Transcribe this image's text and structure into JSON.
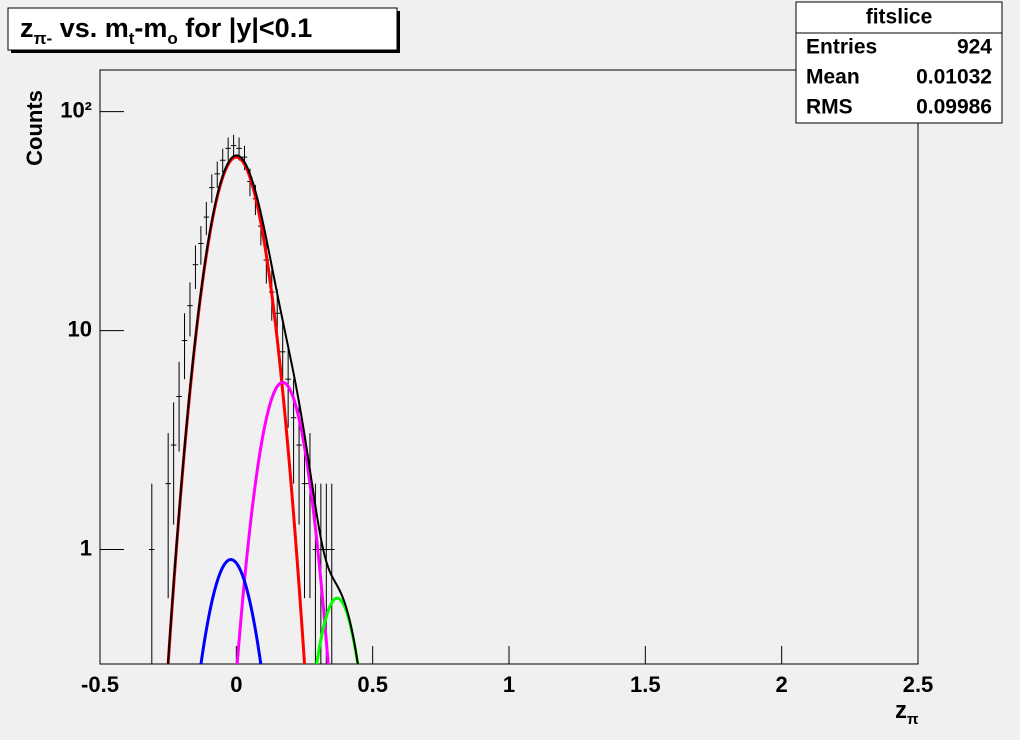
{
  "chart_data": {
    "type": "errorbar",
    "title": [
      {
        "text": "z"
      },
      {
        "text": "π-",
        "sub": true
      },
      {
        "text": " vs. m"
      },
      {
        "text": "t",
        "sub": true
      },
      {
        "text": "-m"
      },
      {
        "text": "o",
        "sub": true
      },
      {
        "text": " for |y|<0.1"
      }
    ],
    "xlabel": [
      {
        "text": "z"
      },
      {
        "text": "π",
        "sub": true
      }
    ],
    "ylabel": "Counts",
    "stats": {
      "title": "fitslice",
      "rows": [
        {
          "label": "Entries",
          "value": 924
        },
        {
          "label": "Mean",
          "value": 0.01032
        },
        {
          "label": "RMS",
          "value": 0.09986
        }
      ]
    },
    "xlim": [
      -0.5,
      2.5
    ],
    "xticks": [
      -0.5,
      0,
      0.5,
      1,
      1.5,
      2,
      2.5
    ],
    "ylim": [
      0.3,
      155
    ],
    "yticks": [
      1,
      10,
      {
        "value": 100,
        "label": "10²"
      }
    ],
    "log_y": true,
    "bin_width": 0.02,
    "color": "#000000",
    "x": [
      -0.31,
      -0.25,
      -0.23,
      -0.21,
      -0.19,
      -0.17,
      -0.15,
      -0.13,
      -0.11,
      -0.09,
      -0.07,
      -0.05,
      -0.03,
      -0.01,
      0.01,
      0.03,
      0.05,
      0.07,
      0.09,
      0.11,
      0.13,
      0.15,
      0.17,
      0.19,
      0.21,
      0.23,
      0.25,
      0.27,
      0.29,
      0.31,
      0.33,
      0.35
    ],
    "values": [
      1,
      2,
      3,
      5,
      9,
      13,
      20,
      25,
      33,
      45,
      52,
      60,
      68,
      70,
      68,
      62,
      48,
      40,
      30,
      21,
      15,
      12,
      8,
      6,
      4,
      3,
      2,
      2,
      1,
      1,
      1,
      1
    ],
    "errors": [
      1,
      1.4,
      1.7,
      2.2,
      3,
      3.6,
      4.5,
      5,
      5.7,
      6.7,
      7.2,
      7.7,
      8.2,
      8.4,
      8.2,
      7.9,
      6.9,
      6.3,
      5.5,
      4.6,
      3.9,
      3.5,
      2.8,
      2.4,
      2,
      1.7,
      1.4,
      1.4,
      1,
      1,
      1,
      1
    ],
    "fit_range": [
      -0.35,
      0.65
    ],
    "curves": [
      {
        "color": "#ff0000",
        "amplitude": 62,
        "mean": 0,
        "sigma": 0.0766
      },
      {
        "color": "#ff00ff",
        "amplitude": 5.8,
        "mean": 0.17,
        "sigma": 0.0686
      },
      {
        "color": "#0000ff",
        "amplitude": 0.9,
        "mean": -0.02,
        "sigma": 0.074
      },
      {
        "color": "#00ff00",
        "amplitude": 0.6,
        "mean": 0.37,
        "sigma": 0.064
      }
    ],
    "total_color": "#000000"
  }
}
